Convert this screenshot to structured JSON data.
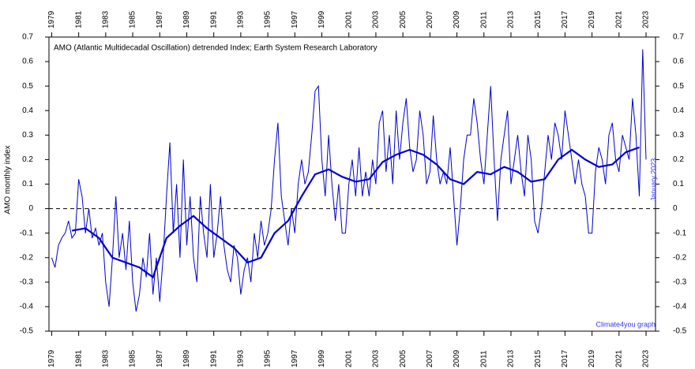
{
  "chart_data": {
    "type": "line",
    "title": "AMO (Atlantic Multidecadal Oscillation) detrended Index; Earth System Research Laboratory",
    "ylabel": "AMO monthly index",
    "annotations": [
      "January 2023",
      "Climate4you graph"
    ],
    "xlim": [
      1978.8,
      2023.7
    ],
    "xticks": [
      1979,
      1981,
      1983,
      1985,
      1987,
      1989,
      1991,
      1993,
      1995,
      1997,
      1999,
      2001,
      2003,
      2005,
      2007,
      2009,
      2011,
      2013,
      2015,
      2017,
      2019,
      2021,
      2023
    ],
    "ylim": [
      -0.5,
      0.7
    ],
    "yticks": [
      -0.5,
      -0.4,
      -0.3,
      -0.2,
      -0.1,
      0,
      0.1,
      0.2,
      0.3,
      0.4,
      0.5,
      0.6,
      0.7
    ],
    "zero_line": true,
    "series": [
      {
        "color": "#0000cc",
        "width": 1,
        "x": [
          1979,
          1979.25,
          1979.5,
          1979.75,
          1980,
          1980.25,
          1980.5,
          1980.75,
          1981,
          1981.25,
          1981.5,
          1981.75,
          1982,
          1982.25,
          1982.5,
          1982.75,
          1983,
          1983.25,
          1983.5,
          1983.75,
          1984,
          1984.25,
          1984.5,
          1984.75,
          1985,
          1985.25,
          1985.5,
          1985.75,
          1986,
          1986.25,
          1986.5,
          1986.75,
          1987,
          1987.25,
          1987.5,
          1987.75,
          1988,
          1988.25,
          1988.5,
          1988.75,
          1989,
          1989.25,
          1989.5,
          1989.75,
          1990,
          1990.25,
          1990.5,
          1990.75,
          1991,
          1991.25,
          1991.5,
          1991.75,
          1992,
          1992.25,
          1992.5,
          1992.75,
          1993,
          1993.25,
          1993.5,
          1993.75,
          1994,
          1994.25,
          1994.5,
          1994.75,
          1995,
          1995.25,
          1995.5,
          1995.75,
          1996,
          1996.25,
          1996.5,
          1996.75,
          1997,
          1997.25,
          1997.5,
          1997.75,
          1998,
          1998.25,
          1998.5,
          1998.75,
          1999,
          1999.25,
          1999.5,
          1999.75,
          2000,
          2000.25,
          2000.5,
          2000.75,
          2001,
          2001.25,
          2001.5,
          2001.75,
          2002,
          2002.25,
          2002.5,
          2002.75,
          2003,
          2003.25,
          2003.5,
          2003.75,
          2004,
          2004.25,
          2004.5,
          2004.75,
          2005,
          2005.25,
          2005.5,
          2005.75,
          2006,
          2006.25,
          2006.5,
          2006.75,
          2007,
          2007.25,
          2007.5,
          2007.75,
          2008,
          2008.25,
          2008.5,
          2008.75,
          2009,
          2009.25,
          2009.5,
          2009.75,
          2010,
          2010.25,
          2010.5,
          2010.75,
          2011,
          2011.25,
          2011.5,
          2011.75,
          2012,
          2012.25,
          2012.5,
          2012.75,
          2013,
          2013.25,
          2013.5,
          2013.75,
          2014,
          2014.25,
          2014.5,
          2014.75,
          2015,
          2015.25,
          2015.5,
          2015.75,
          2016,
          2016.25,
          2016.5,
          2016.75,
          2017,
          2017.25,
          2017.5,
          2017.75,
          2018,
          2018.25,
          2018.5,
          2018.75,
          2019,
          2019.25,
          2019.5,
          2019.75,
          2020,
          2020.25,
          2020.5,
          2020.75,
          2021,
          2021.25,
          2021.5,
          2021.75,
          2022,
          2022.25,
          2022.5,
          2022.75,
          2023
        ],
        "values": [
          -0.2,
          -0.24,
          -0.15,
          -0.12,
          -0.1,
          -0.05,
          -0.12,
          -0.1,
          0.12,
          0.05,
          -0.1,
          0.0,
          -0.12,
          -0.08,
          -0.15,
          -0.1,
          -0.3,
          -0.4,
          -0.2,
          0.05,
          -0.2,
          -0.1,
          -0.25,
          -0.05,
          -0.3,
          -0.42,
          -0.35,
          -0.2,
          -0.28,
          -0.1,
          -0.35,
          -0.2,
          -0.38,
          -0.2,
          0.05,
          0.27,
          -0.1,
          0.1,
          -0.2,
          0.2,
          -0.15,
          0.05,
          -0.2,
          -0.3,
          0.05,
          -0.1,
          -0.2,
          0.1,
          -0.2,
          -0.1,
          0.05,
          -0.15,
          -0.25,
          -0.3,
          -0.15,
          -0.2,
          -0.35,
          -0.25,
          -0.2,
          -0.3,
          -0.1,
          -0.2,
          -0.05,
          -0.15,
          -0.1,
          0.0,
          0.2,
          0.35,
          0.05,
          -0.05,
          -0.15,
          0.0,
          -0.1,
          0.1,
          0.2,
          0.1,
          0.15,
          0.3,
          0.48,
          0.5,
          0.2,
          0.05,
          0.3,
          0.1,
          -0.05,
          0.1,
          -0.1,
          -0.1,
          0.1,
          0.2,
          0.05,
          0.25,
          0.05,
          0.15,
          0.05,
          0.2,
          0.1,
          0.35,
          0.4,
          0.15,
          0.3,
          0.1,
          0.4,
          0.2,
          0.35,
          0.45,
          0.25,
          0.15,
          0.2,
          0.4,
          0.3,
          0.1,
          0.15,
          0.38,
          0.2,
          0.1,
          0.15,
          0.1,
          0.25,
          0.05,
          -0.15,
          0.0,
          0.2,
          0.3,
          0.3,
          0.45,
          0.35,
          0.2,
          0.1,
          0.3,
          0.5,
          0.2,
          -0.05,
          0.2,
          0.3,
          0.4,
          0.1,
          0.2,
          0.3,
          0.15,
          0.05,
          0.3,
          0.2,
          -0.05,
          -0.1,
          0.0,
          0.15,
          0.3,
          0.2,
          0.35,
          0.3,
          0.2,
          0.4,
          0.3,
          0.2,
          0.1,
          0.2,
          0.1,
          0.05,
          -0.1,
          -0.1,
          0.15,
          0.25,
          0.2,
          0.1,
          0.3,
          0.35,
          0.2,
          0.15,
          0.3,
          0.25,
          0.2,
          0.45,
          0.3,
          0.05,
          0.65,
          0.2
        ]
      },
      {
        "color": "#0000cc",
        "width": 2.2,
        "x": [
          1980.5,
          1981.5,
          1982.5,
          1983.5,
          1984.5,
          1985.5,
          1986.5,
          1987.5,
          1988.5,
          1989.5,
          1990.5,
          1991.5,
          1992.5,
          1993.5,
          1994.5,
          1995.5,
          1996.5,
          1997.5,
          1998.5,
          1999.5,
          2000.5,
          2001.5,
          2002.5,
          2003.5,
          2004.5,
          2005.5,
          2006.5,
          2007.5,
          2008.5,
          2009.5,
          2010.5,
          2011.5,
          2012.5,
          2013.5,
          2014.5,
          2015.5,
          2016.5,
          2017.5,
          2018.5,
          2019.5,
          2020.5,
          2021.5,
          2022.5
        ],
        "values": [
          -0.09,
          -0.08,
          -0.12,
          -0.2,
          -0.22,
          -0.24,
          -0.28,
          -0.12,
          -0.07,
          -0.03,
          -0.08,
          -0.12,
          -0.16,
          -0.22,
          -0.2,
          -0.1,
          -0.05,
          0.05,
          0.14,
          0.16,
          0.13,
          0.11,
          0.12,
          0.19,
          0.22,
          0.24,
          0.22,
          0.18,
          0.12,
          0.1,
          0.15,
          0.14,
          0.17,
          0.15,
          0.11,
          0.12,
          0.2,
          0.24,
          0.2,
          0.17,
          0.18,
          0.23,
          0.25
        ]
      }
    ]
  }
}
